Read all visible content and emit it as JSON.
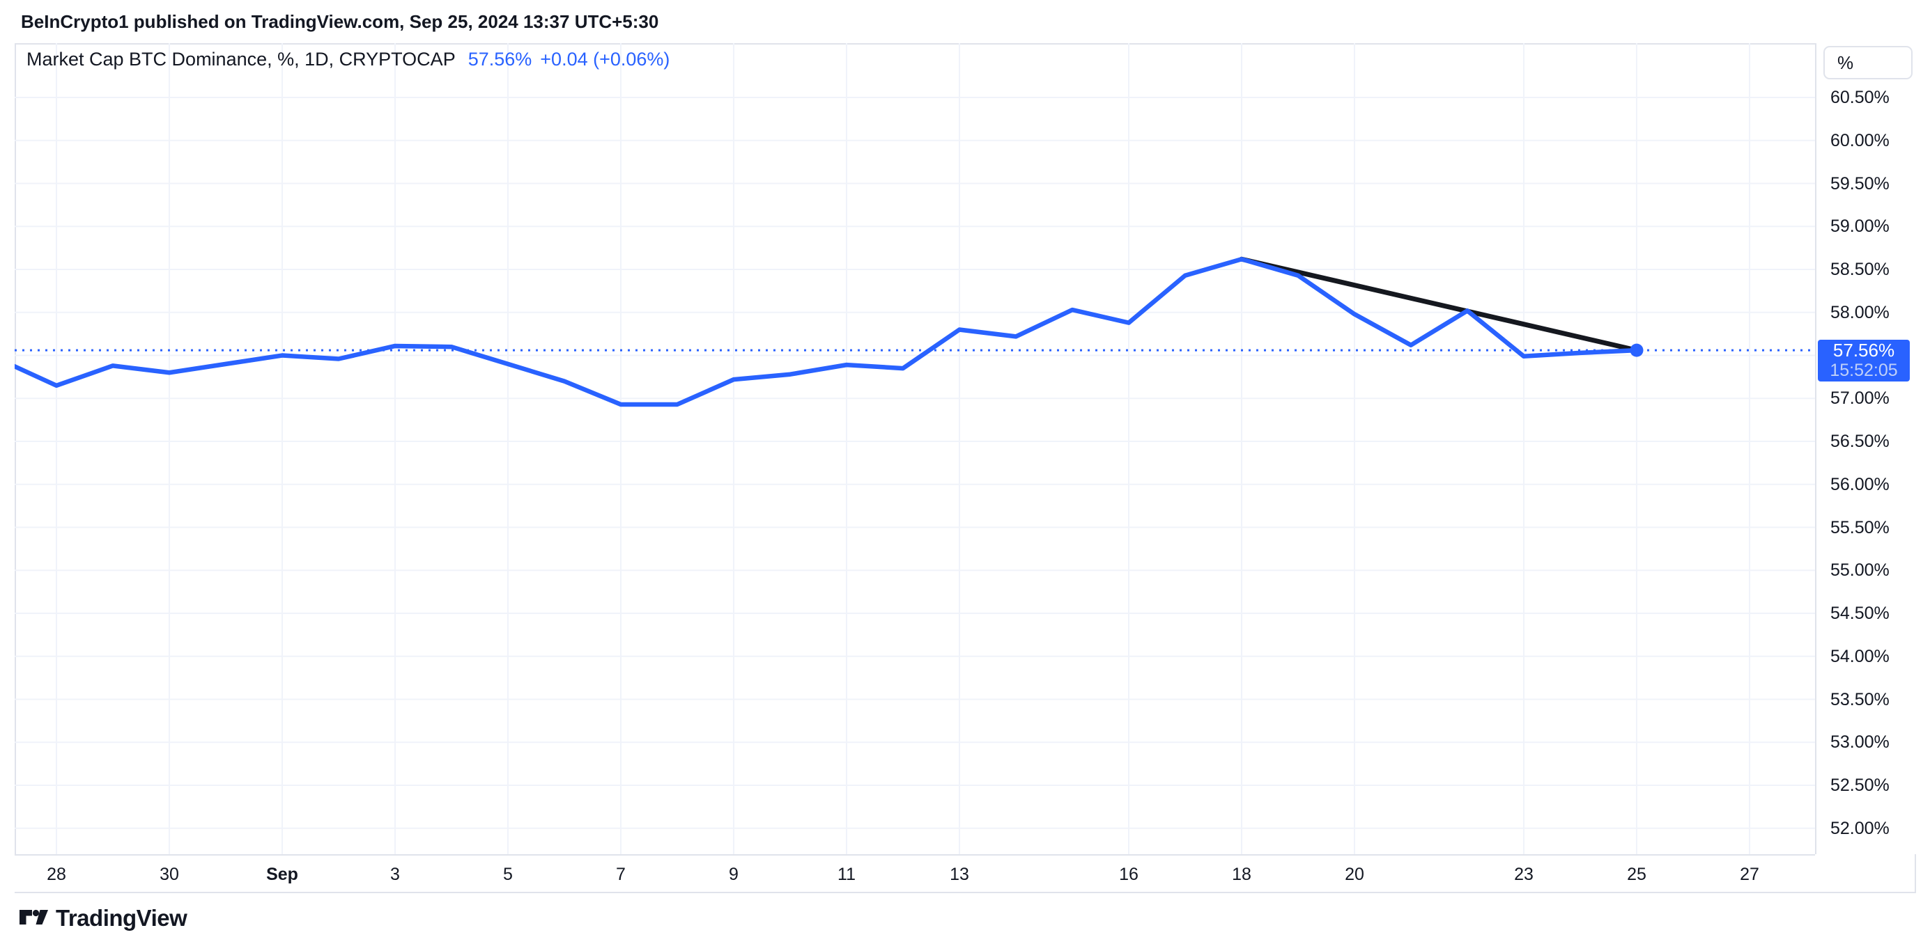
{
  "header": {
    "publish_info": "BeInCrypto1 published on TradingView.com, Sep 25, 2024 13:37 UTC+5:30"
  },
  "legend": {
    "title": "Market Cap BTC Dominance, %, 1D, CRYPTOCAP",
    "value": "57.56%",
    "change": "+0.04 (+0.06%)"
  },
  "price_axis": {
    "unit_button": "%",
    "price_label": {
      "value": "57.56%",
      "countdown": "15:52:05"
    }
  },
  "footer": {
    "logo_text": "TradingView"
  },
  "colors": {
    "accent_blue": "#2962FF",
    "trendline_black": "#15181F",
    "grid": "#F0F3FA",
    "border": "#E0E3EB",
    "text": "#131722",
    "price_label_bg": "#2962FF",
    "countdown_text": "#BFD0F8",
    "background": "#FFFFFF"
  },
  "chart_data": {
    "type": "line",
    "title": "Market Cap BTC Dominance, %, 1D, CRYPTOCAP",
    "symbol": "CRYPTOCAP",
    "interval": "1D",
    "unit": "%",
    "grid": true,
    "legend_position": "top-left",
    "series": [
      {
        "name": "Market Cap BTC Dominance",
        "color": "#2962FF",
        "points": [
          {
            "date": "Aug 27",
            "k": 0,
            "v": 57.45
          },
          {
            "date": "Aug 28",
            "k": 1,
            "v": 57.15
          },
          {
            "date": "Aug 29",
            "k": 2,
            "v": 57.38
          },
          {
            "date": "Aug 30",
            "k": 3,
            "v": 57.3
          },
          {
            "date": "Aug 31",
            "k": 4,
            "v": 57.4
          },
          {
            "date": "Sep 1",
            "k": 5,
            "v": 57.5
          },
          {
            "date": "Sep 2",
            "k": 6,
            "v": 57.46
          },
          {
            "date": "Sep 3",
            "k": 7,
            "v": 57.61
          },
          {
            "date": "Sep 4",
            "k": 8,
            "v": 57.6
          },
          {
            "date": "Sep 5",
            "k": 9,
            "v": 57.4
          },
          {
            "date": "Sep 6",
            "k": 10,
            "v": 57.2
          },
          {
            "date": "Sep 7",
            "k": 11,
            "v": 56.93
          },
          {
            "date": "Sep 8",
            "k": 12,
            "v": 56.93
          },
          {
            "date": "Sep 9",
            "k": 13,
            "v": 57.22
          },
          {
            "date": "Sep 10",
            "k": 14,
            "v": 57.28
          },
          {
            "date": "Sep 11",
            "k": 15,
            "v": 57.39
          },
          {
            "date": "Sep 12",
            "k": 16,
            "v": 57.35
          },
          {
            "date": "Sep 13",
            "k": 17,
            "v": 57.8
          },
          {
            "date": "Sep 14",
            "k": 18,
            "v": 57.72
          },
          {
            "date": "Sep 15",
            "k": 19,
            "v": 58.03
          },
          {
            "date": "Sep 16",
            "k": 20,
            "v": 57.88
          },
          {
            "date": "Sep 17",
            "k": 21,
            "v": 58.43
          },
          {
            "date": "Sep 18",
            "k": 22,
            "v": 58.62
          },
          {
            "date": "Sep 19",
            "k": 23,
            "v": 58.43
          },
          {
            "date": "Sep 20",
            "k": 24,
            "v": 57.98
          },
          {
            "date": "Sep 21",
            "k": 25,
            "v": 57.62
          },
          {
            "date": "Sep 22",
            "k": 26,
            "v": 58.02
          },
          {
            "date": "Sep 23",
            "k": 27,
            "v": 57.49
          },
          {
            "date": "Sep 24",
            "k": 28,
            "v": 57.53
          },
          {
            "date": "Sep 25",
            "k": 29,
            "v": 57.56
          }
        ]
      }
    ],
    "trendline": {
      "from": {
        "date": "Sep 18",
        "k": 22,
        "v": 58.62
      },
      "to": {
        "date": "Sep 25",
        "k": 29,
        "v": 57.56
      },
      "color": "#15181F"
    },
    "price_line": {
      "value": 57.56,
      "style": "dotted",
      "color": "#2962FF"
    },
    "last_point_marker": {
      "date": "Sep 25",
      "k": 29,
      "v": 57.56
    },
    "y_axis": {
      "tick_step": 0.5,
      "visible_min": 51.7,
      "visible_max": 61.1,
      "gridlines": [
        60.5,
        60.0,
        59.5,
        59.0,
        58.5,
        58.0,
        57.5,
        57.0,
        56.5,
        56.0,
        55.5,
        55.0,
        54.5,
        54.0,
        53.5,
        53.0,
        52.5,
        52.0
      ],
      "ticks": [
        {
          "v": 60.5,
          "label": "60.50%"
        },
        {
          "v": 60.0,
          "label": "60.00%"
        },
        {
          "v": 59.5,
          "label": "59.50%"
        },
        {
          "v": 59.0,
          "label": "59.00%"
        },
        {
          "v": 58.5,
          "label": "58.50%"
        },
        {
          "v": 58.0,
          "label": "58.00%"
        },
        {
          "v": 57.0,
          "label": "57.00%"
        },
        {
          "v": 56.5,
          "label": "56.50%"
        },
        {
          "v": 56.0,
          "label": "56.00%"
        },
        {
          "v": 55.5,
          "label": "55.50%"
        },
        {
          "v": 55.0,
          "label": "55.00%"
        },
        {
          "v": 54.5,
          "label": "54.50%"
        },
        {
          "v": 54.0,
          "label": "54.00%"
        },
        {
          "v": 53.5,
          "label": "53.50%"
        },
        {
          "v": 53.0,
          "label": "53.00%"
        },
        {
          "v": 52.5,
          "label": "52.50%"
        },
        {
          "v": 52.0,
          "label": "52.00%"
        }
      ]
    },
    "x_axis": {
      "ticks": [
        {
          "k": 1,
          "label": "28"
        },
        {
          "k": 3,
          "label": "30"
        },
        {
          "k": 5,
          "label": "Sep",
          "bold": true
        },
        {
          "k": 7,
          "label": "3"
        },
        {
          "k": 9,
          "label": "5"
        },
        {
          "k": 11,
          "label": "7"
        },
        {
          "k": 13,
          "label": "9"
        },
        {
          "k": 15,
          "label": "11"
        },
        {
          "k": 17,
          "label": "13"
        },
        {
          "k": 20,
          "label": "16"
        },
        {
          "k": 22,
          "label": "18"
        },
        {
          "k": 24,
          "label": "20"
        },
        {
          "k": 27,
          "label": "23"
        },
        {
          "k": 29,
          "label": "25"
        },
        {
          "k": 31,
          "label": "27"
        }
      ]
    }
  }
}
